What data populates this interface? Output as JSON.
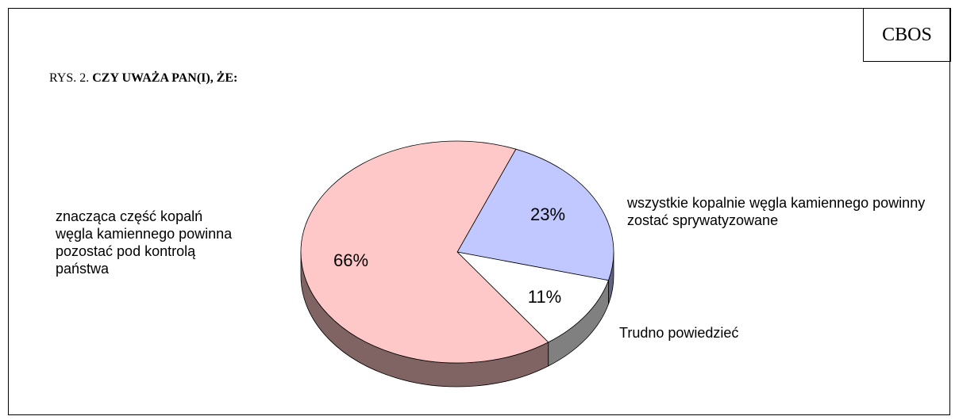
{
  "chart_data": {
    "type": "pie",
    "source": "CBOS",
    "figure_label": "RYS. 2.",
    "title": "CZY UWAŻA PAN(I), ŻE:",
    "categories": [
      "wszystkie kopalnie węgla kamiennego powinny zostać sprywatyzowane",
      "Trudno powiedzieć",
      "znacząca część kopalń węgla kamiennego powinna pozostać pod kontrolą państwa"
    ],
    "values": [
      23,
      11,
      66
    ],
    "value_labels": [
      "23%",
      "11%",
      "66%"
    ],
    "colors": [
      "#c0c8ff",
      "#ffffff",
      "#ffc8c8"
    ]
  }
}
